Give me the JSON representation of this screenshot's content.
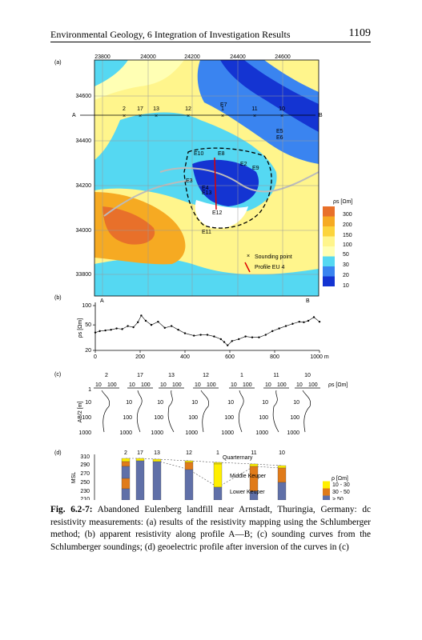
{
  "header": {
    "title": "Environmental Geology, 6 Integration of Investigation Results",
    "page": "1109"
  },
  "figure": {
    "panel_a": {
      "label": "(a)",
      "x_ticks": [
        "23800",
        "24000",
        "24200",
        "24400",
        "24600"
      ],
      "y_ticks": [
        "34600",
        "34400",
        "34200",
        "34000",
        "33800"
      ],
      "profile_ends": [
        "A",
        "B"
      ],
      "sounding_labels": [
        "2",
        "17",
        "13",
        "12",
        "1",
        "11",
        "10"
      ],
      "site_labels": [
        "E7",
        "E5",
        "E6",
        "E10",
        "E8",
        "E2",
        "E9",
        "E4",
        "E13",
        "E3",
        "E12",
        "E11"
      ],
      "legend_title": "ρs [Ωm]",
      "legend_values": [
        "300",
        "200",
        "150",
        "100",
        "50",
        "30",
        "20",
        "10"
      ],
      "legend_sounding": "Sounding point",
      "legend_profile": "Profile EU 4"
    },
    "panel_b": {
      "label": "(b)",
      "y_label": "ρs [Ωm]",
      "start": "A",
      "end": "B",
      "x": [
        0,
        20,
        45,
        70,
        95,
        120,
        145,
        170,
        190,
        205,
        225,
        250,
        280,
        310,
        340,
        370,
        400,
        440,
        470,
        500,
        530,
        560,
        575,
        590,
        610,
        640,
        670,
        700,
        730,
        760,
        790,
        820,
        850,
        880,
        910,
        930,
        950,
        975,
        1000
      ],
      "values": [
        38,
        40,
        41,
        42,
        44,
        43,
        48,
        46,
        55,
        70,
        58,
        50,
        56,
        45,
        48,
        42,
        37,
        34,
        35,
        35,
        33,
        30,
        27,
        24,
        28,
        30,
        33,
        32,
        32,
        35,
        40,
        44,
        48,
        52,
        56,
        55,
        58,
        66,
        56
      ],
      "xlim": [
        0,
        1000
      ],
      "ylim": [
        20,
        100
      ],
      "log_y": true,
      "xticks": [
        0,
        200,
        400,
        600,
        800,
        {
          "value": 1000,
          "label": "1000 m"
        }
      ],
      "yticks": [
        20,
        50,
        100
      ]
    },
    "panel_c": {
      "label": "(c)",
      "soundings": [
        "2",
        "17",
        "13",
        "12",
        "1",
        "11",
        "10"
      ],
      "x_tick_labels": [
        "10",
        "100"
      ],
      "x_axis_label": "ρs [Ωm]",
      "y_label": "AB/2 [m]",
      "y_tick_labels": [
        "1",
        "10",
        "100",
        "1000"
      ]
    },
    "panel_d": {
      "label": "(d)",
      "y_label": "MSL",
      "y_tick_labels": [
        "310",
        "290",
        "270",
        "250",
        "230",
        "210"
      ],
      "soundings": [
        "2",
        "17",
        "13",
        "12",
        "1",
        "11",
        "10"
      ],
      "units": [
        "Quarternary",
        "Middle Keuper",
        "Lower Keuper"
      ],
      "legend_title": "ρ [Ωm]",
      "legend_items": [
        "10 - 30",
        "30 - 50",
        "> 50"
      ]
    }
  },
  "caption": {
    "label": "Fig. 6.2-7:",
    "text": "Abandoned Eulenberg landfill near Arnstadt, Thuringia, Germany: dc resistivity measurements: (a) results of the resistivity mapping using the Schlumberger method; (b) apparent resistivity along profile A—B; (c) sounding curves from the Schlumberger soundings; (d) geoelectric profile after inversion of the curves in (c)"
  }
}
